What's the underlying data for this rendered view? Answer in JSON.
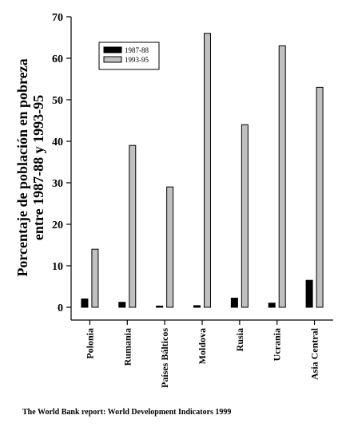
{
  "chart_data": {
    "type": "bar",
    "categories": [
      "Polonia",
      "Rumania",
      "Países Bálticos",
      "Moldova",
      "Rusia",
      "Ucrania",
      "Asia Central"
    ],
    "series": [
      {
        "name": "1987-88",
        "color": "#000000",
        "values": [
          2,
          1.2,
          0.3,
          0.4,
          2.2,
          1,
          6.5
        ]
      },
      {
        "name": "1993-95",
        "color": "#c0c0c0",
        "values": [
          14,
          39,
          29,
          66,
          44,
          63,
          53
        ]
      }
    ],
    "ylabel": [
      "Porcentaje de población en pobreza",
      "entre 1987-88 y 1993-95"
    ],
    "xlabel": "",
    "ylim": [
      0,
      70
    ],
    "yticks": [
      0,
      10,
      20,
      30,
      40,
      50,
      60,
      70
    ],
    "legend_position": "top-left",
    "grid": false
  },
  "source_note": "The World Bank report: World Development Indicators 1999"
}
